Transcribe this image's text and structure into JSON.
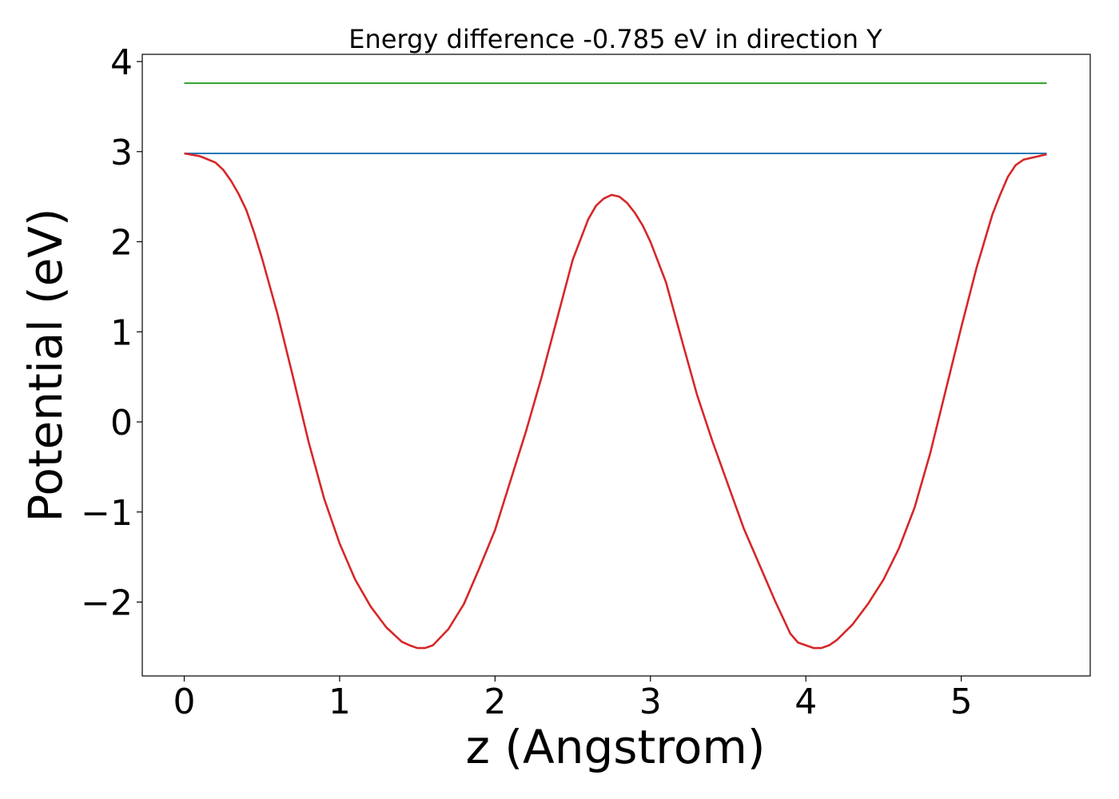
{
  "chart_data": {
    "type": "line",
    "title": "Energy difference -0.785 eV in direction Y",
    "xlabel": "z (Angstrom)",
    "ylabel": "Potential (eV)",
    "xlim": [
      -0.27,
      5.83
    ],
    "ylim": [
      -2.82,
      4.08
    ],
    "xticks": [
      0,
      1,
      2,
      3,
      4,
      5
    ],
    "xtick_labels": [
      "0",
      "1",
      "2",
      "3",
      "4",
      "5"
    ],
    "yticks": [
      -2,
      -1,
      0,
      1,
      2,
      3,
      4
    ],
    "ytick_labels": [
      "−2",
      "−1",
      "0",
      "1",
      "2",
      "3",
      "4"
    ],
    "grid": false,
    "series": [
      {
        "color": "#d62728",
        "x": [
          0,
          0.1,
          0.2,
          0.25,
          0.3,
          0.35,
          0.4,
          0.45,
          0.5,
          0.6,
          0.7,
          0.8,
          0.9,
          1.0,
          1.1,
          1.2,
          1.3,
          1.4,
          1.45,
          1.5,
          1.55,
          1.6,
          1.7,
          1.8,
          1.9,
          2.0,
          2.1,
          2.2,
          2.3,
          2.4,
          2.5,
          2.6,
          2.65,
          2.7,
          2.75,
          2.8,
          2.85,
          2.9,
          2.95,
          3.0,
          3.1,
          3.2,
          3.3,
          3.4,
          3.5,
          3.6,
          3.7,
          3.8,
          3.9,
          3.95,
          4.0,
          4.05,
          4.1,
          4.15,
          4.2,
          4.3,
          4.4,
          4.5,
          4.6,
          4.7,
          4.8,
          4.9,
          5.0,
          5.1,
          5.2,
          5.25,
          5.3,
          5.35,
          5.4,
          5.45,
          5.5,
          5.55
        ],
        "y": [
          2.98,
          2.95,
          2.88,
          2.8,
          2.68,
          2.53,
          2.35,
          2.1,
          1.82,
          1.2,
          0.5,
          -0.22,
          -0.85,
          -1.35,
          -1.75,
          -2.05,
          -2.28,
          -2.44,
          -2.48,
          -2.51,
          -2.51,
          -2.48,
          -2.3,
          -2.02,
          -1.62,
          -1.2,
          -0.65,
          -0.1,
          0.5,
          1.15,
          1.8,
          2.25,
          2.4,
          2.48,
          2.52,
          2.5,
          2.43,
          2.32,
          2.18,
          2.0,
          1.55,
          0.92,
          0.3,
          -0.22,
          -0.7,
          -1.18,
          -1.58,
          -1.98,
          -2.35,
          -2.45,
          -2.48,
          -2.51,
          -2.51,
          -2.48,
          -2.42,
          -2.25,
          -2.02,
          -1.75,
          -1.4,
          -0.95,
          -0.35,
          0.35,
          1.05,
          1.72,
          2.3,
          2.52,
          2.72,
          2.85,
          2.91,
          2.93,
          2.95,
          2.97
        ]
      },
      {
        "color": "#1f77b4",
        "x": [
          0,
          5.55
        ],
        "y": [
          2.98,
          2.98
        ]
      },
      {
        "color": "#2ca02c",
        "x": [
          0,
          5.55
        ],
        "y": [
          3.76,
          3.76
        ]
      }
    ]
  }
}
